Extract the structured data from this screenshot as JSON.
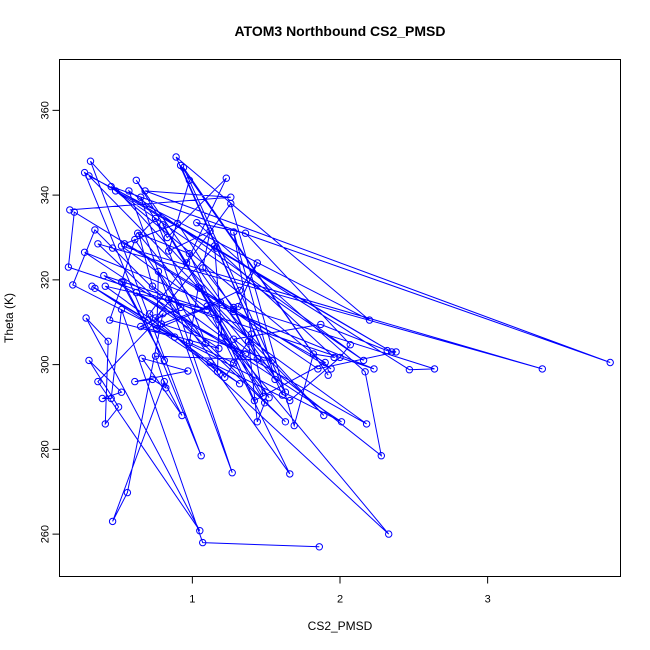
{
  "chart_data": {
    "type": "line",
    "title": "ATOM3 Northbound CS2_PMSD",
    "xlabel": "CS2_PMSD",
    "ylabel": "Theta (K)",
    "xlim": [
      0.1,
      3.9
    ],
    "ylim": [
      250,
      372
    ],
    "xticks": [
      1,
      2,
      3
    ],
    "yticks": [
      260,
      280,
      300,
      320,
      340,
      360
    ],
    "color": "#0000ff",
    "markers": "open-circle",
    "grid": false,
    "legend": "none",
    "series": [
      {
        "points": [
          [
            0.17,
            336.5
          ],
          [
            1.26,
            339.5
          ],
          [
            0.68,
            341
          ],
          [
            3.83,
            300.5
          ],
          [
            0.45,
            342
          ],
          [
            2.35,
            303
          ],
          [
            0.27,
            345.3
          ],
          [
            1.06,
            278.5
          ],
          [
            0.31,
            348
          ],
          [
            1.89,
            288
          ],
          [
            0.3,
            344.5
          ],
          [
            2.2,
            310.5
          ],
          [
            0.89,
            349
          ],
          [
            1.61,
            292.8
          ],
          [
            0.92,
            347
          ],
          [
            1.92,
            297.5
          ],
          [
            0.94,
            346.5
          ],
          [
            1.63,
            293.5
          ],
          [
            0.62,
            343.5
          ],
          [
            0.96,
            324
          ],
          [
            1.23,
            344
          ],
          [
            0.83,
            330
          ],
          [
            0.65,
            339.5
          ],
          [
            1.27,
            274.5
          ],
          [
            0.57,
            341
          ],
          [
            2.16,
            301
          ],
          [
            0.48,
            341
          ],
          [
            1.94,
            299
          ],
          [
            0.2,
            336
          ],
          [
            0.16,
            323
          ],
          [
            2.23,
            299
          ],
          [
            0.27,
            326.5
          ],
          [
            2.01,
            286.5
          ],
          [
            0.19,
            318.8
          ],
          [
            0.34,
            331.8
          ],
          [
            1.63,
            286.5
          ],
          [
            0.36,
            328.5
          ],
          [
            0.46,
            327.5
          ],
          [
            3.37,
            299
          ],
          [
            0.52,
            328
          ],
          [
            2.18,
            286
          ],
          [
            0.4,
            321
          ],
          [
            1.1,
            313
          ],
          [
            0.41,
            318.5
          ],
          [
            1.32,
            295.5
          ],
          [
            0.32,
            318.5
          ],
          [
            0.7,
            310.5
          ],
          [
            0.34,
            318
          ],
          [
            0.88,
            306.5
          ],
          [
            0.44,
            310.5
          ],
          [
            0.53,
            319.5
          ],
          [
            0.81,
            301
          ],
          [
            0.52,
            319.5
          ],
          [
            0.61,
            329.5
          ],
          [
            0.92,
            313.5
          ],
          [
            0.65,
            309
          ],
          [
            1.18,
            303.8
          ],
          [
            0.62,
            317
          ],
          [
            1.36,
            302.5
          ],
          [
            0.73,
            318.5
          ],
          [
            0.64,
            330.5
          ],
          [
            0.75,
            334.5
          ],
          [
            1.09,
            305
          ],
          [
            0.77,
            322
          ],
          [
            0.76,
            308.5
          ],
          [
            1.19,
            314.7
          ],
          [
            0.79,
            309.6
          ],
          [
            1.54,
            301
          ],
          [
            0.75,
            302
          ],
          [
            0.82,
            294.5
          ],
          [
            0.73,
            296.5
          ],
          [
            0.61,
            296
          ],
          [
            0.97,
            298.5
          ],
          [
            0.66,
            301.5
          ],
          [
            0.93,
            288
          ],
          [
            0.81,
            296
          ],
          [
            0.46,
            263
          ],
          [
            0.56,
            269.8
          ],
          [
            0.8,
            312
          ],
          [
            0.36,
            296
          ],
          [
            1.05,
            260.8
          ],
          [
            0.28,
            311
          ],
          [
            0.43,
            305.5
          ],
          [
            0.41,
            286
          ],
          [
            0.5,
            290
          ],
          [
            0.3,
            301
          ],
          [
            0.52,
            293.5
          ],
          [
            0.39,
            292
          ],
          [
            0.45,
            292
          ],
          [
            0.52,
            313
          ],
          [
            1.07,
            258
          ],
          [
            1.86,
            257
          ]
        ]
      },
      {
        "points": [
          [
            0.98,
            343.5
          ],
          [
            0.84,
            326.8
          ],
          [
            1.12,
            331.5
          ],
          [
            1.07,
            322.8
          ],
          [
            1.28,
            313.5
          ],
          [
            1.44,
            301.4
          ],
          [
            1.28,
            313
          ],
          [
            0.9,
            333.3
          ],
          [
            0.54,
            328.5
          ],
          [
            1.28,
            312.5
          ],
          [
            1.9,
            300.5
          ],
          [
            1.42,
            291.5
          ],
          [
            0.98,
            326.2
          ],
          [
            0.63,
            331
          ],
          [
            2.33,
            260
          ],
          [
            0.75,
            311
          ],
          [
            1.15,
            328
          ],
          [
            1.2,
            306.5
          ],
          [
            1.52,
            292.2
          ],
          [
            0.8,
            333
          ],
          [
            1.48,
            292.5
          ],
          [
            1.4,
            307.2
          ],
          [
            1.28,
            331.3
          ],
          [
            1.56,
            296.5
          ],
          [
            1.05,
            318
          ],
          [
            1.85,
            299
          ],
          [
            2.38,
            303
          ],
          [
            2.32,
            303.3
          ],
          [
            1.87,
            309.5
          ],
          [
            1.28,
            306
          ],
          [
            2.28,
            278.5
          ],
          [
            2.17,
            298.3
          ],
          [
            1.03,
            333.5
          ],
          [
            1.36,
            331
          ],
          [
            2.07,
            304.7
          ],
          [
            2.0,
            301.7
          ],
          [
            1.66,
            291.5
          ],
          [
            1.12,
            300.5
          ],
          [
            1.66,
            274.2
          ],
          [
            1.1,
            313.8
          ],
          [
            1.32,
            317.5
          ],
          [
            1.44,
            324
          ],
          [
            1.31,
            313.7
          ],
          [
            2.64,
            299
          ],
          [
            2.47,
            298.8
          ],
          [
            1.16,
            327.5
          ],
          [
            1.96,
            301.7
          ],
          [
            1.82,
            302.5
          ],
          [
            1.69,
            285.6
          ],
          [
            1.26,
            338
          ],
          [
            0.71,
            312
          ],
          [
            1.17,
            298.3
          ],
          [
            1.18,
            310.6
          ],
          [
            0.84,
            315.4
          ],
          [
            1.22,
            297
          ],
          [
            1.38,
            305.5
          ],
          [
            1.44,
            286.5
          ],
          [
            1.49,
            291
          ],
          [
            1.04,
            318.3
          ],
          [
            0.98,
            305.2
          ],
          [
            1.28,
            300.4
          ]
        ]
      }
    ]
  }
}
